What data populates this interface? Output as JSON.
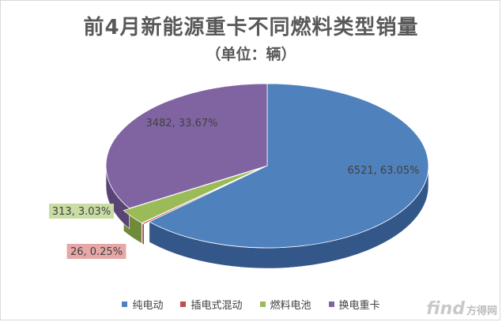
{
  "chart_data": {
    "type": "pie",
    "title": "前4月新能源重卡不同燃料类型销量",
    "subtitle": "（单位：辆）",
    "style": "3d-exploded-pie",
    "legend_position": "bottom",
    "slices": [
      {
        "name": "纯电动",
        "value": 6521,
        "percent_label": "63.05%",
        "label": "6521, 63.05%",
        "color": "#4f81bd",
        "side_color": "#34578a"
      },
      {
        "name": "插电式混动",
        "value": 26,
        "percent_label": "0.25%",
        "label": "26, 0.25%",
        "color": "#c0504d",
        "side_color": "#8c3634"
      },
      {
        "name": "燃料电池",
        "value": 313,
        "percent_label": "3.03%",
        "label": "313, 3.03%",
        "color": "#9bbb59",
        "side_color": "#6f8a3b"
      },
      {
        "name": "换电重卡",
        "value": 3482,
        "percent_label": "33.67%",
        "label": "3482, 33.67%",
        "color": "#8064a2",
        "side_color": "#5a4476"
      }
    ]
  },
  "watermark": {
    "brand": "find",
    "brand_cn": "方得网"
  }
}
